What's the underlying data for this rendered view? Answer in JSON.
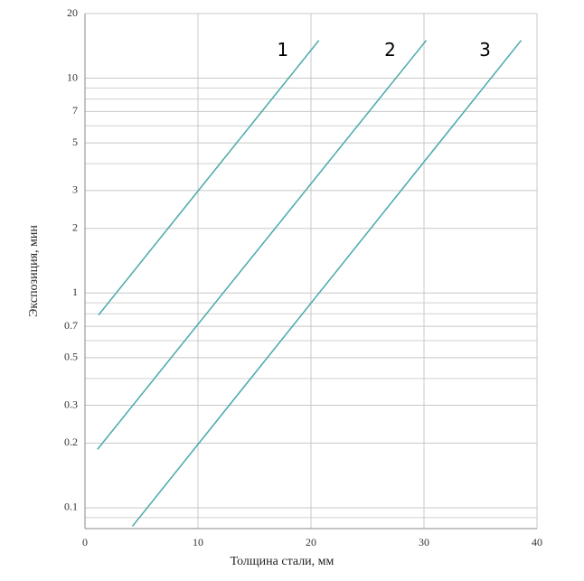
{
  "chart_data": {
    "type": "line",
    "xlabel": "Толщина стали, мм",
    "ylabel": "Экспозиция, мин",
    "xlim": [
      0,
      40
    ],
    "xticks": [
      0,
      10,
      20,
      30,
      40
    ],
    "ylim": [
      0.08,
      20
    ],
    "yscale": "log",
    "yticks": [
      0.1,
      0.2,
      0.3,
      0.5,
      0.7,
      1,
      2,
      3,
      5,
      7,
      10,
      20
    ],
    "yminor": [
      0.08,
      0.09,
      0.4,
      0.6,
      0.8,
      0.9,
      4,
      6,
      8,
      9
    ],
    "grid": true,
    "series": [
      {
        "name": "1",
        "color": "#4aa8a8",
        "x": [
          1.2,
          20.7
        ],
        "values": [
          0.79,
          15
        ]
      },
      {
        "name": "2",
        "color": "#4aa8a8",
        "x": [
          1.1,
          30.2
        ],
        "values": [
          0.187,
          15
        ]
      },
      {
        "name": "3",
        "color": "#4aa8a8",
        "x": [
          4.2,
          38.6
        ],
        "values": [
          0.082,
          15
        ]
      }
    ]
  }
}
